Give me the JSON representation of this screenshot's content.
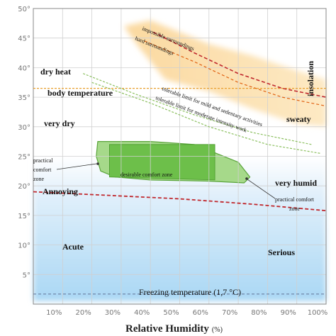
{
  "chart_data": {
    "type": "area",
    "title": "",
    "xlabel": "Relative Humidity",
    "xlabel_unit": "(%)",
    "ylabel": "",
    "xlim": [
      0,
      100
    ],
    "ylim": [
      0,
      50
    ],
    "grid": true,
    "x_ticks": [
      "10%",
      "20%",
      "30%",
      "40%",
      "50%",
      "60%",
      "70%",
      "80%",
      "90%",
      "100%"
    ],
    "y_ticks": [
      "5°",
      "10°",
      "15°",
      "20°",
      "25°",
      "30°",
      "35°",
      "40°",
      "45°",
      "50°"
    ],
    "zone_labels": {
      "dry_heat": "dry heat",
      "body_temperature": "body temperature",
      "very_dry": "very dry",
      "sweaty": "sweaty",
      "insolation": "insolation",
      "very_humid": "very humid",
      "annoying": "Annoying",
      "acute": "Acute",
      "serious": "Serious",
      "freezing": "Freezing temperature (1,7 °C)"
    },
    "small_labels": {
      "practical_comfort_left": [
        "practical",
        "comfort",
        "zone"
      ],
      "practical_comfort_right": [
        "practical comfort",
        "zone"
      ],
      "desirable_comfort": "desirable comfort zone",
      "impossible": "impossible surroundings",
      "hard": "hard surroundings",
      "tolerable_mild": "tolerable limit for mild and sedentary activities",
      "tolerable_moderate": "tolerable limit for moderate intensity work"
    },
    "lines": {
      "body_temperature": [
        [
          0,
          36.5
        ],
        [
          100,
          36.5
        ]
      ],
      "freezing": [
        [
          0,
          1.7
        ],
        [
          100,
          1.7
        ]
      ],
      "annoying": [
        [
          0,
          19
        ],
        [
          25,
          18.4
        ],
        [
          50,
          17.8
        ],
        [
          75,
          16.9
        ],
        [
          100,
          15.8
        ]
      ],
      "impossible": [
        [
          41,
          46
        ],
        [
          55,
          42.5
        ],
        [
          70,
          39
        ],
        [
          85,
          36.5
        ],
        [
          100,
          35
        ]
      ],
      "hard": [
        [
          38,
          44.5
        ],
        [
          55,
          41
        ],
        [
          70,
          37.5
        ],
        [
          85,
          35
        ],
        [
          100,
          33.5
        ]
      ],
      "tolerable_mild": [
        [
          17,
          39
        ],
        [
          35,
          35.5
        ],
        [
          55,
          32
        ],
        [
          75,
          29
        ],
        [
          95,
          27
        ]
      ],
      "tolerable_moderate": [
        [
          20,
          37.5
        ],
        [
          40,
          34
        ],
        [
          60,
          30
        ],
        [
          80,
          27
        ],
        [
          98,
          25.5
        ]
      ]
    },
    "zones": {
      "hot": [
        [
          31,
          47
        ],
        [
          40,
          48
        ],
        [
          60,
          44
        ],
        [
          75,
          42
        ],
        [
          90,
          39.5
        ],
        [
          100,
          38
        ],
        [
          100,
          30
        ],
        [
          90,
          30.5
        ],
        [
          75,
          33
        ],
        [
          60,
          36
        ],
        [
          45,
          38
        ],
        [
          36,
          43.5
        ]
      ],
      "cold": [
        [
          0,
          25
        ],
        [
          100,
          25
        ],
        [
          100,
          0.5
        ],
        [
          0,
          0.5
        ]
      ],
      "practical_comfort": [
        [
          22,
          27.5
        ],
        [
          40,
          27.5
        ],
        [
          55,
          27
        ],
        [
          70,
          24
        ],
        [
          74,
          21.5
        ],
        [
          72,
          20.5
        ],
        [
          60,
          20.8
        ],
        [
          40,
          21
        ],
        [
          28,
          21.5
        ],
        [
          23,
          22.5
        ],
        [
          21.5,
          25
        ]
      ],
      "desirable_comfort": [
        [
          26,
          27
        ],
        [
          62,
          27
        ],
        [
          62,
          21
        ],
        [
          26,
          21.5
        ]
      ]
    }
  }
}
